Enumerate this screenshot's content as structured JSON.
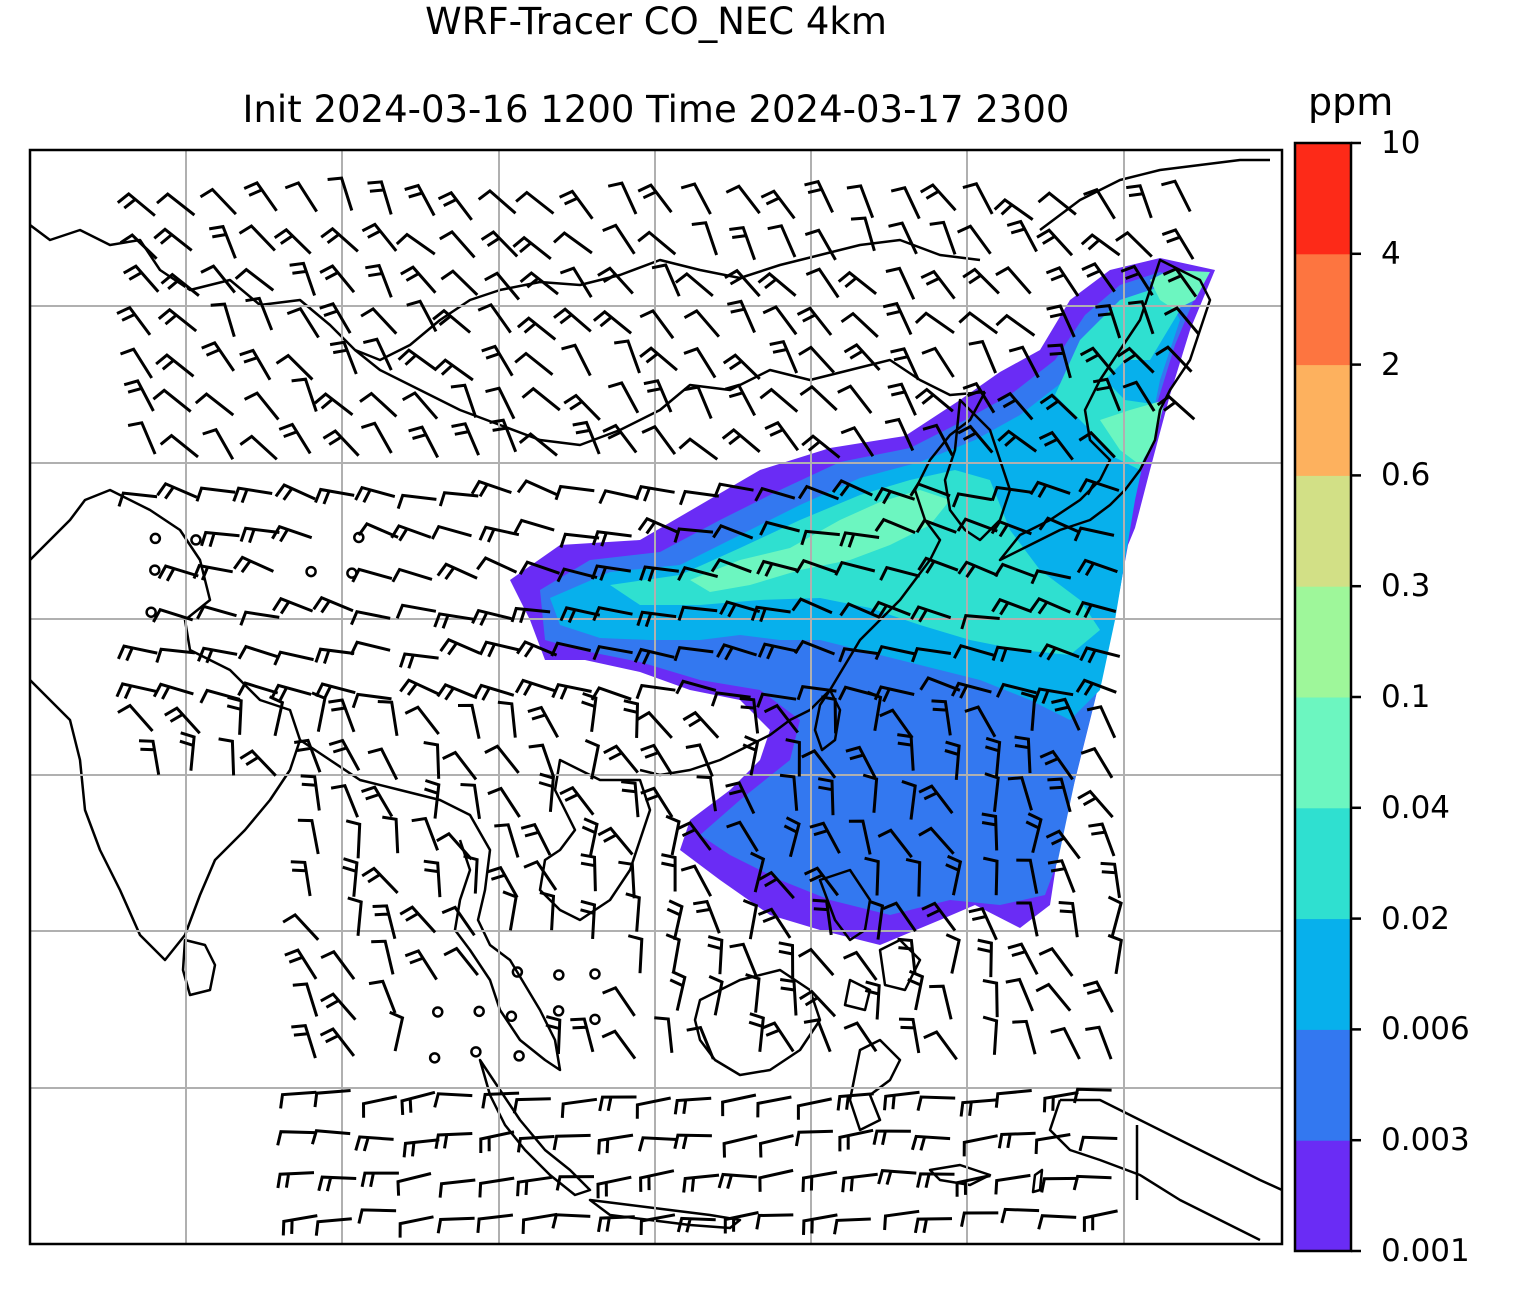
{
  "title": {
    "line1": "WRF-Tracer CO_NEC 4km",
    "line2": "Init 2024-03-16 1200 Time 2024-03-17 2300"
  },
  "colorbar": {
    "unit": "ppm",
    "levels": [
      "0.001",
      "0.003",
      "0.006",
      "0.02",
      "0.04",
      "0.1",
      "0.3",
      "0.6",
      "2",
      "4",
      "10"
    ],
    "colors": [
      "#6a2cf5",
      "#3378f0",
      "#07b0ec",
      "#2fe0d0",
      "#6cf6c0",
      "#9ef79a",
      "#d2e086",
      "#fdb15e",
      "#fd7540",
      "#fd2a18"
    ]
  },
  "map": {
    "gridlines": true,
    "coastline_color": "#000000",
    "gridline_color": "#b0b0b0",
    "overlays": [
      "tracer concentration",
      "wind barbs"
    ]
  }
}
